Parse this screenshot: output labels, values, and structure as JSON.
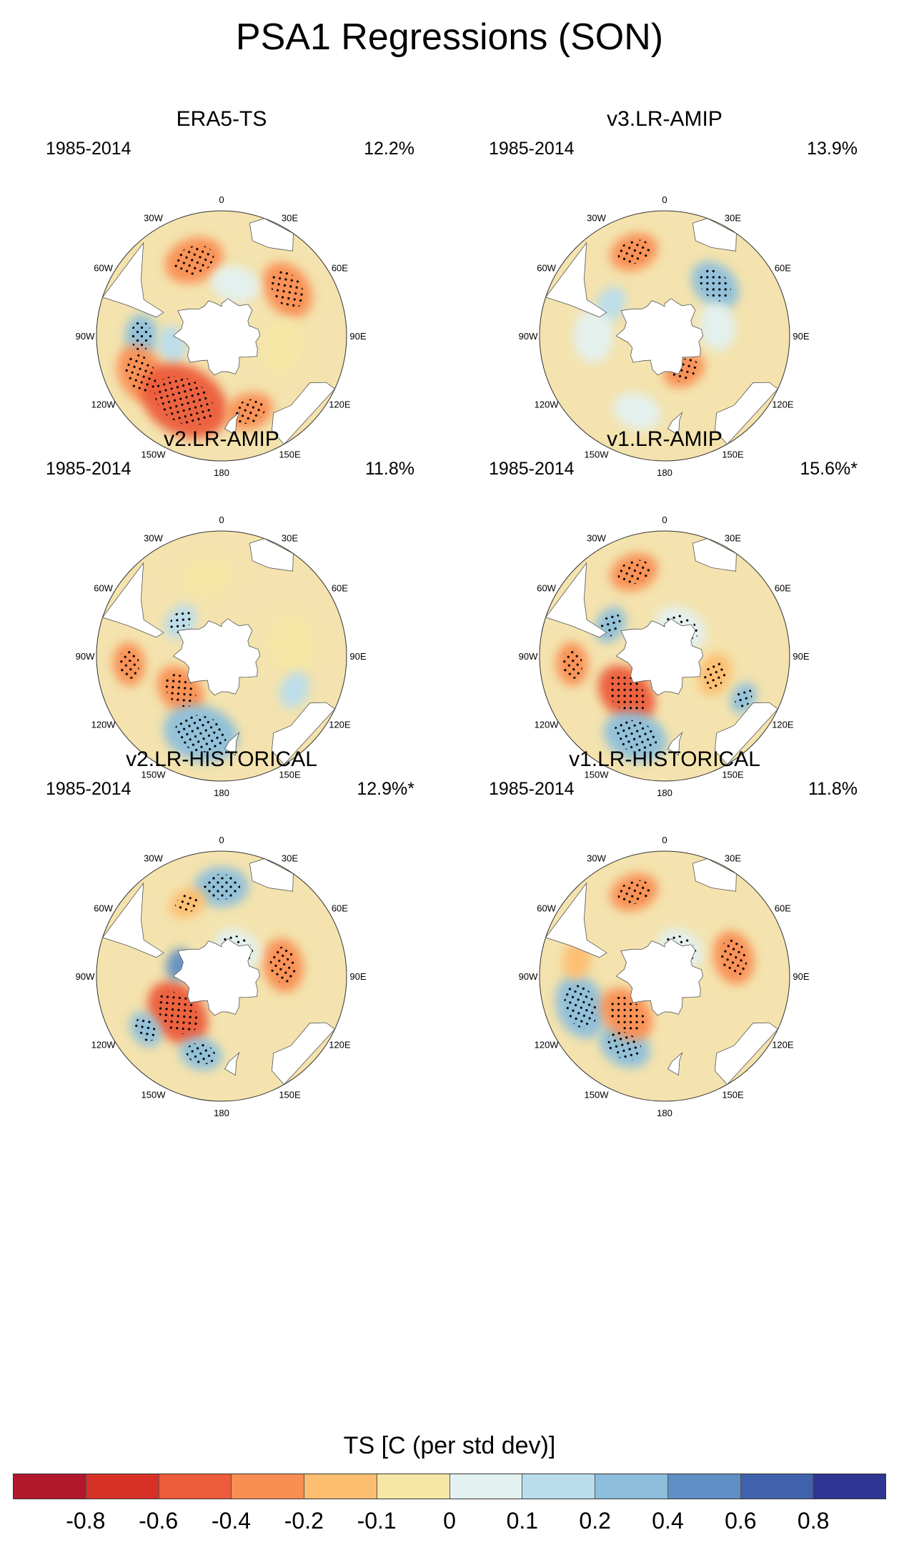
{
  "figure_title": "PSA1 Regressions (SON)",
  "panels": [
    {
      "title": "ERA5-TS",
      "period": "1985-2014",
      "variance": "12.2%",
      "features": [
        {
          "lon": -20,
          "lat": -45,
          "r": 22,
          "value": -0.3,
          "stip": true
        },
        {
          "lon": 55,
          "lat": -45,
          "r": 22,
          "value": -0.3,
          "stip": true
        },
        {
          "lon": -90,
          "lat": -45,
          "r": 16,
          "value": 0.25,
          "stip": true
        },
        {
          "lon": -100,
          "lat": -62,
          "r": 14,
          "value": 0.1,
          "stip": false
        },
        {
          "lon": -115,
          "lat": -40,
          "r": 22,
          "value": -0.4,
          "stip": true
        },
        {
          "lon": -150,
          "lat": -48,
          "r": 34,
          "value": -0.55,
          "stip": true
        },
        {
          "lon": 160,
          "lat": -45,
          "r": 18,
          "value": -0.3,
          "stip": true
        },
        {
          "lon": 100,
          "lat": -55,
          "r": 20,
          "value": -0.1,
          "stip": false
        },
        {
          "lon": 15,
          "lat": -60,
          "r": 18,
          "value": 0.05,
          "stip": false
        }
      ]
    },
    {
      "title": "v3.LR-AMIP",
      "period": "1985-2014",
      "variance": "13.9%",
      "features": [
        {
          "lon": -20,
          "lat": -40,
          "r": 18,
          "value": -0.35,
          "stip": true
        },
        {
          "lon": 45,
          "lat": -50,
          "r": 20,
          "value": 0.2,
          "stip": true
        },
        {
          "lon": -60,
          "lat": -55,
          "r": 14,
          "value": 0.12,
          "stip": false
        },
        {
          "lon": -90,
          "lat": -50,
          "r": 20,
          "value": 0.05,
          "stip": false
        },
        {
          "lon": 150,
          "lat": -68,
          "r": 16,
          "value": -0.25,
          "stip": true
        },
        {
          "lon": -160,
          "lat": -45,
          "r": 18,
          "value": 0.08,
          "stip": false
        },
        {
          "lon": 80,
          "lat": -60,
          "r": 18,
          "value": 0.05,
          "stip": false
        }
      ]
    },
    {
      "title": "v2.LR-AMIP",
      "period": "1985-2014",
      "variance": "11.8%",
      "features": [
        {
          "lon": -95,
          "lat": -38,
          "r": 16,
          "value": -0.3,
          "stip": true
        },
        {
          "lon": -130,
          "lat": -60,
          "r": 20,
          "value": -0.4,
          "stip": true
        },
        {
          "lon": -165,
          "lat": -45,
          "r": 28,
          "value": 0.35,
          "stip": true
        },
        {
          "lon": -50,
          "lat": -60,
          "r": 14,
          "value": 0.15,
          "stip": true
        },
        {
          "lon": -10,
          "lat": -45,
          "r": 18,
          "value": -0.1,
          "stip": false
        },
        {
          "lon": 80,
          "lat": -50,
          "r": 22,
          "value": -0.1,
          "stip": false
        },
        {
          "lon": 115,
          "lat": -45,
          "r": 14,
          "value": 0.12,
          "stip": false
        }
      ]
    },
    {
      "title": "v1.LR-AMIP",
      "period": "1985-2014",
      "variance": "15.6%*",
      "features": [
        {
          "lon": -20,
          "lat": -40,
          "r": 18,
          "value": -0.4,
          "stip": true
        },
        {
          "lon": -95,
          "lat": -38,
          "r": 16,
          "value": -0.25,
          "stip": true
        },
        {
          "lon": -135,
          "lat": -60,
          "r": 24,
          "value": -0.45,
          "stip": true
        },
        {
          "lon": -160,
          "lat": -42,
          "r": 24,
          "value": 0.3,
          "stip": true
        },
        {
          "lon": 110,
          "lat": -60,
          "r": 16,
          "value": -0.2,
          "stip": true
        },
        {
          "lon": 118,
          "lat": -40,
          "r": 12,
          "value": 0.3,
          "stip": true
        },
        {
          "lon": -60,
          "lat": -55,
          "r": 14,
          "value": 0.2,
          "stip": true
        },
        {
          "lon": 30,
          "lat": -72,
          "r": 20,
          "value": 0.05,
          "stip": true
        }
      ]
    },
    {
      "title": "v2.LR-HISTORICAL",
      "period": "1985-2014",
      "variance": "12.9%*",
      "features": [
        {
          "lon": 0,
          "lat": -40,
          "r": 20,
          "value": 0.3,
          "stip": true
        },
        {
          "lon": 80,
          "lat": -55,
          "r": 20,
          "value": -0.4,
          "stip": true
        },
        {
          "lon": -130,
          "lat": -58,
          "r": 26,
          "value": -0.55,
          "stip": true
        },
        {
          "lon": -125,
          "lat": -38,
          "r": 14,
          "value": 0.25,
          "stip": true
        },
        {
          "lon": -165,
          "lat": -45,
          "r": 16,
          "value": 0.25,
          "stip": true
        },
        {
          "lon": -75,
          "lat": -65,
          "r": 12,
          "value": 0.45,
          "stip": false
        },
        {
          "lon": -25,
          "lat": -45,
          "r": 14,
          "value": -0.2,
          "stip": true
        },
        {
          "lon": 30,
          "lat": -72,
          "r": 18,
          "value": 0.05,
          "stip": true
        }
      ]
    },
    {
      "title": "v1.LR-HISTORICAL",
      "period": "1985-2014",
      "variance": "11.8%",
      "features": [
        {
          "lon": -20,
          "lat": -40,
          "r": 18,
          "value": -0.4,
          "stip": true
        },
        {
          "lon": -110,
          "lat": -40,
          "r": 24,
          "value": 0.35,
          "stip": true
        },
        {
          "lon": -150,
          "lat": -45,
          "r": 20,
          "value": 0.3,
          "stip": true
        },
        {
          "lon": -135,
          "lat": -60,
          "r": 22,
          "value": -0.4,
          "stip": true
        },
        {
          "lon": 75,
          "lat": -50,
          "r": 20,
          "value": -0.3,
          "stip": true
        },
        {
          "lon": 30,
          "lat": -72,
          "r": 18,
          "value": 0.05,
          "stip": true
        },
        {
          "lon": -80,
          "lat": -40,
          "r": 14,
          "value": -0.2,
          "stip": false
        }
      ]
    }
  ],
  "lon_labels": [
    "0",
    "30E",
    "60E",
    "90E",
    "120E",
    "150E",
    "180",
    "150W",
    "120W",
    "90W",
    "60W",
    "30W"
  ],
  "colorbar": {
    "title": "TS [C (per std dev)]",
    "ticks": [
      "-0.8",
      "-0.6",
      "-0.4",
      "-0.2",
      "-0.1",
      "0",
      "0.1",
      "0.2",
      "0.4",
      "0.6",
      "0.8"
    ],
    "levels": [
      -0.8,
      -0.6,
      -0.4,
      -0.2,
      -0.1,
      0,
      0.1,
      0.2,
      0.4,
      0.6,
      0.8
    ],
    "colors": [
      "#b2182b",
      "#d73027",
      "#ec5c3b",
      "#f98e52",
      "#fdbe70",
      "#f7e7a6",
      "#e3f1f1",
      "#b9dded",
      "#8dbfdc",
      "#5f8fc4",
      "#4062ad",
      "#2f3592"
    ]
  }
}
